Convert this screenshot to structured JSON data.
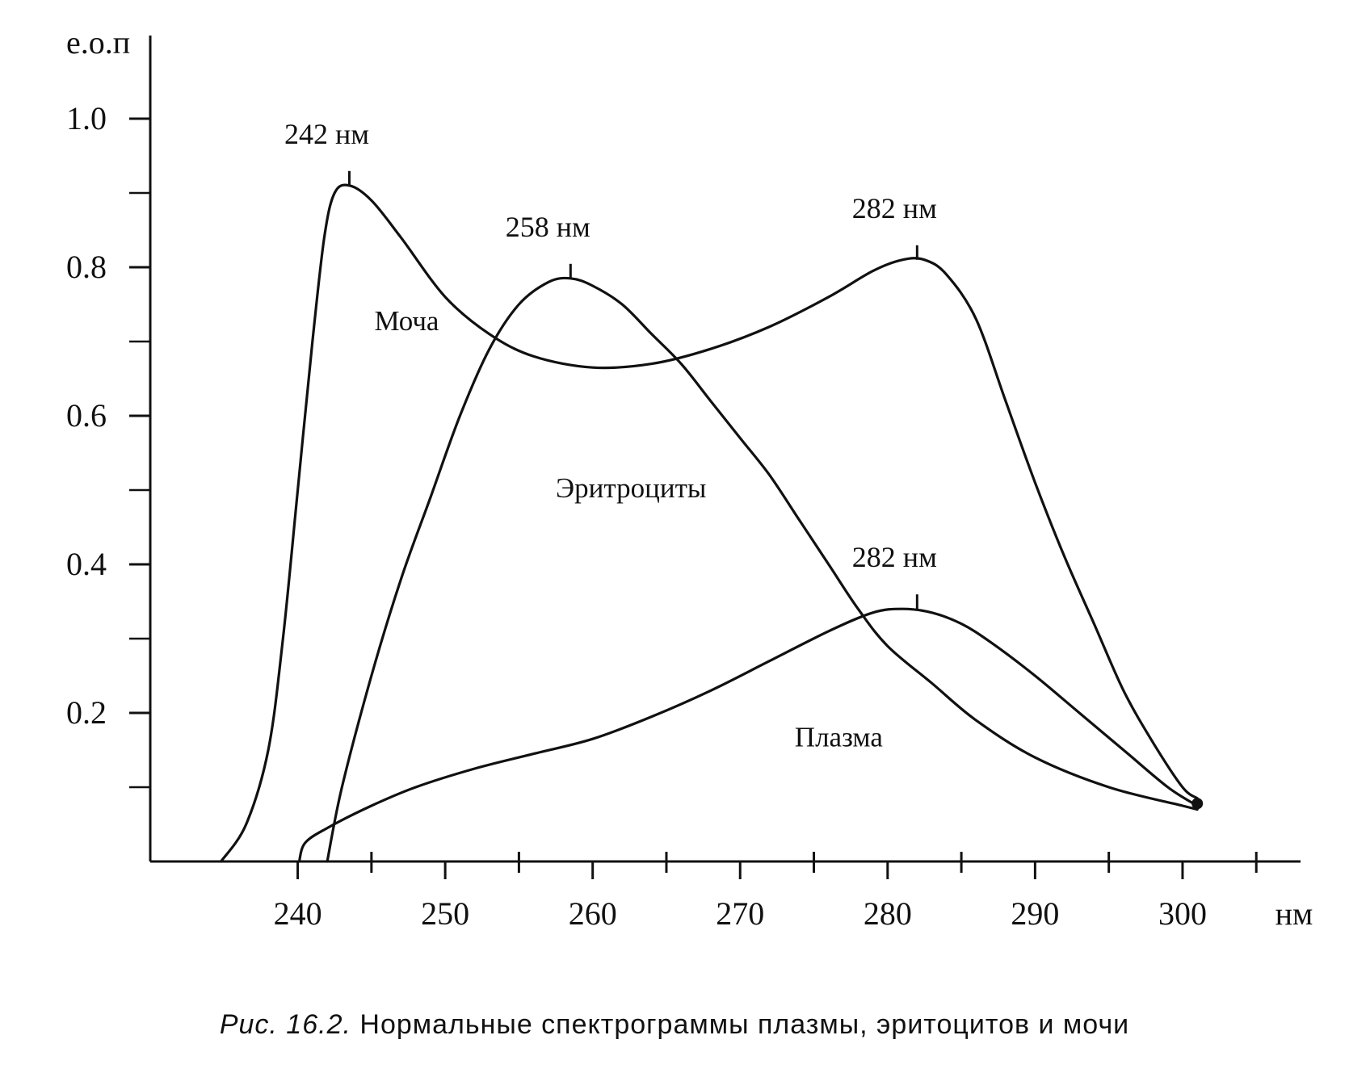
{
  "chart_data": {
    "type": "line",
    "ylabel": "е.о.п",
    "xlabel": "нм",
    "xlim": [
      230,
      308
    ],
    "ylim": [
      0,
      1.05
    ],
    "x_ticks": [
      240,
      250,
      260,
      270,
      280,
      290,
      300
    ],
    "x_minor_ticks": [
      245,
      255,
      265,
      275,
      285,
      295,
      305
    ],
    "y_ticks": [
      "0.2",
      "0.4",
      "0.6",
      "0.8",
      "1.0"
    ],
    "y_minor_ticks": [
      0.1,
      0.3,
      0.5,
      0.7,
      0.9
    ],
    "grid": false,
    "series": [
      {
        "name": "Моча",
        "label_at": [
          245.2,
          0.715
        ],
        "points": [
          [
            234.8,
            0.0
          ],
          [
            236.5,
            0.05
          ],
          [
            238,
            0.15
          ],
          [
            239,
            0.3
          ],
          [
            240,
            0.5
          ],
          [
            241,
            0.7
          ],
          [
            241.8,
            0.84
          ],
          [
            242.5,
            0.9
          ],
          [
            243.5,
            0.91
          ],
          [
            245,
            0.89
          ],
          [
            247,
            0.84
          ],
          [
            250,
            0.76
          ],
          [
            253,
            0.71
          ],
          [
            256,
            0.68
          ],
          [
            260,
            0.665
          ],
          [
            264,
            0.67
          ],
          [
            268,
            0.69
          ],
          [
            272,
            0.72
          ],
          [
            276,
            0.76
          ],
          [
            279,
            0.795
          ],
          [
            281,
            0.81
          ],
          [
            282.5,
            0.81
          ],
          [
            284,
            0.79
          ],
          [
            286,
            0.73
          ],
          [
            288,
            0.62
          ],
          [
            290,
            0.51
          ],
          [
            292,
            0.41
          ],
          [
            294,
            0.32
          ],
          [
            296,
            0.23
          ],
          [
            298,
            0.16
          ],
          [
            300,
            0.1
          ],
          [
            301,
            0.085
          ]
        ]
      },
      {
        "name": "Эритроциты",
        "label_at": [
          257.5,
          0.49
        ],
        "points": [
          [
            242,
            0.0
          ],
          [
            243,
            0.1
          ],
          [
            245,
            0.25
          ],
          [
            247,
            0.38
          ],
          [
            249,
            0.49
          ],
          [
            251,
            0.6
          ],
          [
            253,
            0.69
          ],
          [
            255,
            0.75
          ],
          [
            257,
            0.78
          ],
          [
            258.5,
            0.785
          ],
          [
            260,
            0.775
          ],
          [
            262,
            0.75
          ],
          [
            264,
            0.71
          ],
          [
            266,
            0.67
          ],
          [
            268,
            0.62
          ],
          [
            270,
            0.57
          ],
          [
            272,
            0.52
          ],
          [
            274,
            0.46
          ],
          [
            276,
            0.4
          ],
          [
            278,
            0.34
          ],
          [
            280,
            0.29
          ],
          [
            283,
            0.24
          ],
          [
            286,
            0.19
          ],
          [
            290,
            0.14
          ],
          [
            295,
            0.1
          ],
          [
            300,
            0.075
          ],
          [
            301,
            0.07
          ]
        ]
      },
      {
        "name": "Плазма",
        "label_at": [
          273.7,
          0.155
        ],
        "points": [
          [
            240.1,
            0.0
          ],
          [
            240.5,
            0.025
          ],
          [
            242,
            0.045
          ],
          [
            245,
            0.075
          ],
          [
            248,
            0.1
          ],
          [
            252,
            0.125
          ],
          [
            256,
            0.145
          ],
          [
            260,
            0.165
          ],
          [
            264,
            0.195
          ],
          [
            268,
            0.23
          ],
          [
            272,
            0.27
          ],
          [
            276,
            0.31
          ],
          [
            279,
            0.335
          ],
          [
            281,
            0.34
          ],
          [
            283,
            0.335
          ],
          [
            285,
            0.32
          ],
          [
            287,
            0.295
          ],
          [
            290,
            0.25
          ],
          [
            293,
            0.2
          ],
          [
            296,
            0.15
          ],
          [
            299,
            0.1
          ],
          [
            301,
            0.075
          ]
        ]
      }
    ],
    "annotations": [
      {
        "text": "242 нм",
        "x": 243.5,
        "y": 0.91
      },
      {
        "text": "258 нм",
        "x": 258.5,
        "y": 0.785
      },
      {
        "text": "282 нм",
        "x": 282.0,
        "y": 0.81
      },
      {
        "text": "282 нм",
        "x": 282.0,
        "y": 0.34
      }
    ]
  },
  "caption": {
    "figure": "Рис. 16.2.",
    "text": "Нормальные спектрограммы плазмы, эритоцитов и мочи"
  }
}
